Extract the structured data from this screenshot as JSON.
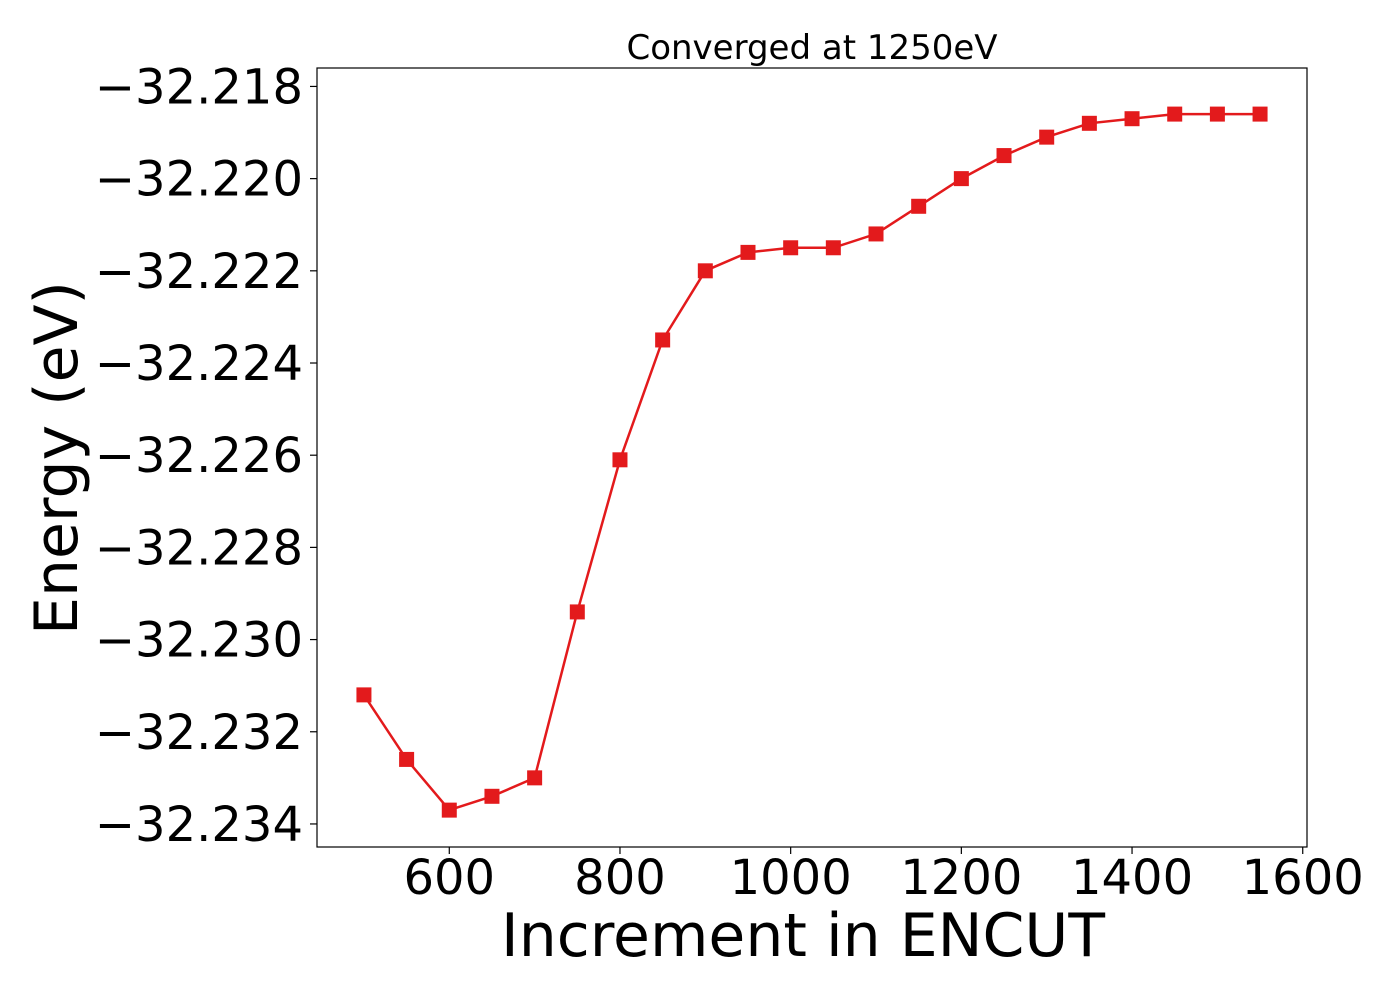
{
  "chart_data": {
    "type": "line",
    "title": "Converged at 1250eV",
    "xlabel": "Increment in ENCUT",
    "ylabel": "Energy (eV)",
    "xlim": [
      445,
      1605
    ],
    "ylim": [
      -32.2345,
      -32.2176
    ],
    "xticks": [
      600,
      800,
      1000,
      1200,
      1400,
      1600
    ],
    "xtick_labels": [
      "600",
      "800",
      "1000",
      "1200",
      "1400",
      "1600"
    ],
    "yticks": [
      -32.234,
      -32.232,
      -32.23,
      -32.228,
      -32.226,
      -32.224,
      -32.222,
      -32.22,
      -32.218
    ],
    "ytick_labels": [
      "−32.234",
      "−32.232",
      "−32.230",
      "−32.228",
      "−32.226",
      "−32.224",
      "−32.222",
      "−32.220",
      "−32.218"
    ],
    "grid": false,
    "series": [
      {
        "color": "#e31a1c",
        "marker": "square",
        "x": [
          500,
          550,
          600,
          650,
          700,
          750,
          800,
          850,
          900,
          950,
          1000,
          1050,
          1100,
          1150,
          1200,
          1250,
          1300,
          1350,
          1400,
          1450,
          1500,
          1550
        ],
        "y": [
          -32.2312,
          -32.2326,
          -32.2337,
          -32.2334,
          -32.233,
          -32.2294,
          -32.2261,
          -32.2235,
          -32.222,
          -32.2216,
          -32.2215,
          -32.2215,
          -32.2212,
          -32.2206,
          -32.22,
          -32.2195,
          -32.2191,
          -32.2188,
          -32.2187,
          -32.2186,
          -32.2186,
          -32.2186
        ]
      }
    ]
  }
}
